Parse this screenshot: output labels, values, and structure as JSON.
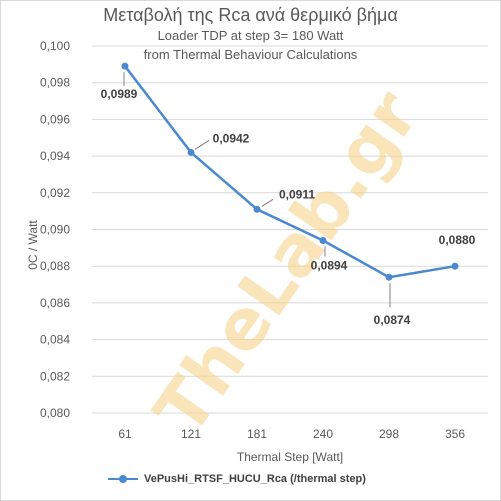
{
  "chart_data": {
    "type": "line",
    "title": "Μεταβολή της Rca ανά θερμικό βήμα",
    "subtitle_lines": [
      "Loader TDP at step 3= 180 Watt",
      "from Thermal Behaviour Calculations"
    ],
    "xlabel": "Thermal Step [Watt]",
    "ylabel": "0C / Watt",
    "categories": [
      "61",
      "121",
      "181",
      "240",
      "298",
      "356"
    ],
    "ylim": [
      0.08,
      0.1
    ],
    "y_ticks": [
      "0,080",
      "0,082",
      "0,084",
      "0,086",
      "0,088",
      "0,090",
      "0,092",
      "0,094",
      "0,096",
      "0,098",
      "0,100"
    ],
    "series": [
      {
        "name": "VePusHi_RTSF_HUCU_Rca (/thermal step)",
        "values": [
          0.0989,
          0.0942,
          0.0911,
          0.0894,
          0.0874,
          0.088
        ],
        "labels": [
          "0,0989",
          "0,0942",
          "0,0911",
          "0,0894",
          "0,0874",
          "0,0880"
        ],
        "color": "#4a89cf"
      }
    ],
    "grid": true,
    "legend_position": "bottom",
    "watermark": "TheLab.gr"
  }
}
